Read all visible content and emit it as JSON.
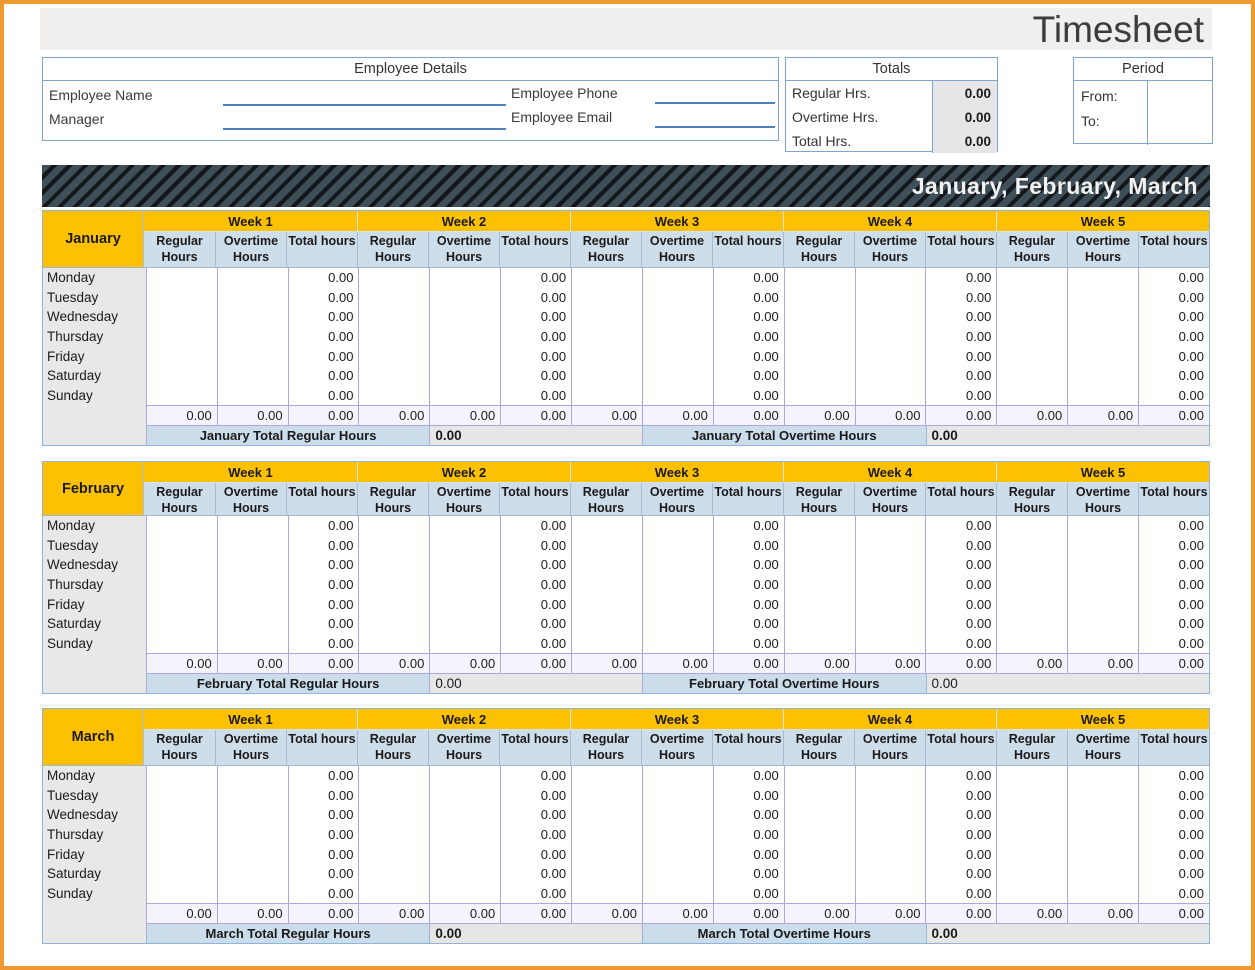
{
  "page": {
    "title": "Timesheet"
  },
  "colors": {
    "frame_orange": "#EE9A31",
    "header_yellow": "#FDC101",
    "subheader_blue": "#CEDDEA",
    "summary_label_blue": "#CBDCEA",
    "banner_slate": "#3E4F59",
    "border_blue": "#7EA4D4",
    "border_lavender": "#ACA7E0",
    "computed_cell_gray": "#E7E6E6",
    "day_label_gray": "#E9E8E8"
  },
  "employee_details": {
    "header": "Employee Details",
    "fields": [
      {
        "label": "Employee Name",
        "value": ""
      },
      {
        "label": "Manager",
        "value": ""
      },
      {
        "label": "Employee Phone",
        "value": ""
      },
      {
        "label": "Employee Email",
        "value": ""
      }
    ]
  },
  "totals_box": {
    "header": "Totals",
    "rows": [
      {
        "label": "Regular Hrs.",
        "value": "0.00"
      },
      {
        "label": "Overtime Hrs.",
        "value": "0.00"
      },
      {
        "label": "Total Hrs.",
        "value": "0.00"
      }
    ]
  },
  "period_box": {
    "header": "Period",
    "from_label": "From:",
    "from_value": "",
    "to_label": "To:",
    "to_value": ""
  },
  "banner": {
    "title": "January, February, March"
  },
  "timesheet": {
    "week_labels": [
      "Week 1",
      "Week 2",
      "Week 3",
      "Week 4",
      "Week 5"
    ],
    "sub_headers": [
      "Regular Hours",
      "Overtime Hours",
      "Total hours"
    ],
    "days": [
      "Monday",
      "Tuesday",
      "Wednesday",
      "Thursday",
      "Friday",
      "Saturday",
      "Sunday"
    ],
    "months": [
      {
        "name": "January",
        "day_week_totals": [
          [
            "0.00",
            "0.00",
            "0.00",
            "0.00",
            "0.00"
          ],
          [
            "0.00",
            "0.00",
            "0.00",
            "0.00",
            "0.00"
          ],
          [
            "0.00",
            "0.00",
            "0.00",
            "0.00",
            "0.00"
          ],
          [
            "0.00",
            "0.00",
            "0.00",
            "0.00",
            "0.00"
          ],
          [
            "0.00",
            "0.00",
            "0.00",
            "0.00",
            "0.00"
          ],
          [
            "0.00",
            "0.00",
            "0.00",
            "0.00",
            "0.00"
          ],
          [
            "0.00",
            "0.00",
            "0.00",
            "0.00",
            "0.00"
          ]
        ],
        "column_totals": [
          "0.00",
          "0.00",
          "0.00",
          "0.00",
          "0.00",
          "0.00",
          "0.00",
          "0.00",
          "0.00",
          "0.00",
          "0.00",
          "0.00",
          "0.00",
          "0.00",
          "0.00"
        ],
        "summary": {
          "regular_label": "January Total Regular Hours",
          "regular_value": "0.00",
          "overtime_label": "January Total Overtime Hours",
          "overtime_value": "0.00",
          "bold_values": true
        }
      },
      {
        "name": "February",
        "day_week_totals": [
          [
            "0.00",
            "0.00",
            "0.00",
            "0.00",
            "0.00"
          ],
          [
            "0.00",
            "0.00",
            "0.00",
            "0.00",
            "0.00"
          ],
          [
            "0.00",
            "0.00",
            "0.00",
            "0.00",
            "0.00"
          ],
          [
            "0.00",
            "0.00",
            "0.00",
            "0.00",
            "0.00"
          ],
          [
            "0.00",
            "0.00",
            "0.00",
            "0.00",
            "0.00"
          ],
          [
            "0.00",
            "0.00",
            "0.00",
            "0.00",
            "0.00"
          ],
          [
            "0.00",
            "0.00",
            "0.00",
            "0.00",
            "0.00"
          ]
        ],
        "column_totals": [
          "0.00",
          "0.00",
          "0.00",
          "0.00",
          "0.00",
          "0.00",
          "0.00",
          "0.00",
          "0.00",
          "0.00",
          "0.00",
          "0.00",
          "0.00",
          "0.00",
          "0.00"
        ],
        "summary": {
          "regular_label": "February Total Regular Hours",
          "regular_value": "0.00",
          "overtime_label": "February Total Overtime Hours",
          "overtime_value": "0.00",
          "bold_values": false
        }
      },
      {
        "name": "March",
        "day_week_totals": [
          [
            "0.00",
            "0.00",
            "0.00",
            "0.00",
            "0.00"
          ],
          [
            "0.00",
            "0.00",
            "0.00",
            "0.00",
            "0.00"
          ],
          [
            "0.00",
            "0.00",
            "0.00",
            "0.00",
            "0.00"
          ],
          [
            "0.00",
            "0.00",
            "0.00",
            "0.00",
            "0.00"
          ],
          [
            "0.00",
            "0.00",
            "0.00",
            "0.00",
            "0.00"
          ],
          [
            "0.00",
            "0.00",
            "0.00",
            "0.00",
            "0.00"
          ],
          [
            "0.00",
            "0.00",
            "0.00",
            "0.00",
            "0.00"
          ]
        ],
        "column_totals": [
          "0.00",
          "0.00",
          "0.00",
          "0.00",
          "0.00",
          "0.00",
          "0.00",
          "0.00",
          "0.00",
          "0.00",
          "0.00",
          "0.00",
          "0.00",
          "0.00",
          "0.00"
        ],
        "summary": {
          "regular_label": "March Total Regular Hours",
          "regular_value": "0.00",
          "overtime_label": "March Total Overtime Hours",
          "overtime_value": "0.00",
          "bold_values": true
        }
      }
    ]
  }
}
